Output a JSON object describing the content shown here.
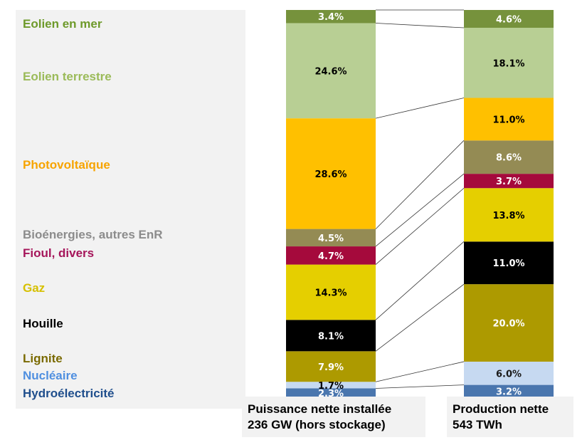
{
  "chart_data": {
    "type": "bar",
    "stacked": true,
    "normalized": "percent",
    "categories": [
      "Puissance nette installée 236 GW (hors stockage)",
      "Production nette 543 TWh"
    ],
    "category_captions": [
      {
        "line1": "Puissance nette installée",
        "line2": "236 GW (hors stockage)"
      },
      {
        "line1": "Production nette",
        "line2": "543  TWh"
      }
    ],
    "series": [
      {
        "name": "Hydroélectricité",
        "values": [
          2.3,
          3.2
        ],
        "color": "#4a76ae",
        "legend_color": "#1f4e8c",
        "label_colors": [
          "#ffffff",
          "#ffffff"
        ]
      },
      {
        "name": "Nucléaire",
        "values": [
          1.7,
          6.0
        ],
        "color": "#c6d9f1",
        "legend_color": "#4f8fe0",
        "label_colors": [
          "#000000",
          "#1a1a1a"
        ]
      },
      {
        "name": "Lignite",
        "values": [
          7.9,
          20.0
        ],
        "color": "#ad9a00",
        "legend_color": "#7a6a00",
        "label_colors": [
          "#ffffff",
          "#ffffff"
        ]
      },
      {
        "name": "Houille",
        "values": [
          8.1,
          11.0
        ],
        "color": "#000000",
        "legend_color": "#000000",
        "label_colors": [
          "#ffffff",
          "#ffffff"
        ]
      },
      {
        "name": "Gaz",
        "values": [
          14.3,
          13.8
        ],
        "color": "#e5cf00",
        "legend_color": "#d6c000",
        "label_colors": [
          "#000000",
          "#000000"
        ]
      },
      {
        "name": "Fioul, divers",
        "values": [
          4.7,
          3.7
        ],
        "color": "#a50a3c",
        "legend_color": "#a5155a",
        "label_colors": [
          "#ffffff",
          "#ffffff"
        ]
      },
      {
        "name": "Bioénergies, autres EnR",
        "values": [
          4.5,
          8.6
        ],
        "color": "#948b54",
        "legend_color": "#8c8c8c",
        "label_colors": [
          "#ffffff",
          "#ffffff"
        ]
      },
      {
        "name": "Photovoltaïque",
        "values": [
          28.6,
          11.0
        ],
        "color": "#ffc000",
        "legend_color": "#f7a400",
        "label_colors": [
          "#000000",
          "#000000"
        ]
      },
      {
        "name": "Eolien terrestre",
        "values": [
          24.6,
          18.1
        ],
        "color": "#b8cf94",
        "legend_color": "#9bbb59",
        "label_colors": [
          "#000000",
          "#000000"
        ]
      },
      {
        "name": "Eolien en mer",
        "values": [
          3.4,
          4.6
        ],
        "color": "#76923c",
        "legend_color": "#6e9a2b",
        "label_colors": [
          "#ffffff",
          "#ffffff"
        ]
      }
    ],
    "data_label_format": "0.0%",
    "legend_position": "left",
    "grid": false,
    "connector_lines": true
  }
}
